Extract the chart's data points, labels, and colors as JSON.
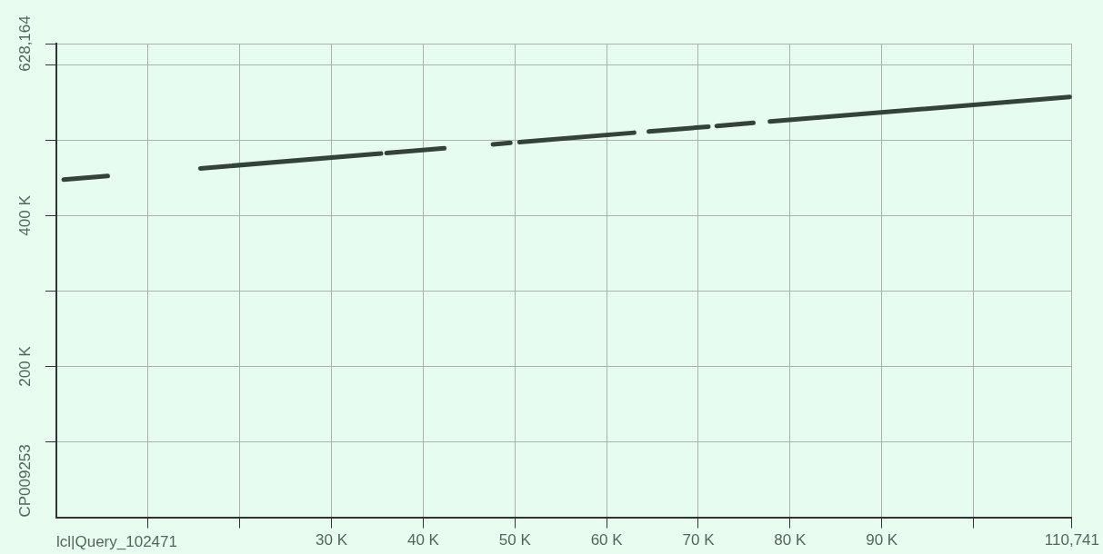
{
  "chart_data": {
    "type": "line",
    "xlabel": "lcl|Query_102471",
    "ylabel": "CP009253",
    "series": [
      {
        "color": "#34423a",
        "x": [
          800,
          5600,
          10000,
          15700,
          35400,
          35700,
          36000,
          42300,
          45000,
          47600,
          49500,
          50000,
          50500,
          63000,
          63800,
          64600,
          71100,
          71500,
          72000,
          76000,
          77000,
          77800,
          110500
        ],
        "values": [
          447800,
          452600,
          null,
          462700,
          482400,
          null,
          483000,
          489300,
          null,
          494600,
          496500,
          null,
          497500,
          510000,
          null,
          511600,
          518100,
          null,
          519000,
          523000,
          null,
          524800,
          557500
        ]
      }
    ],
    "xlim": [
      1,
      110741
    ],
    "ylim": [
      1,
      628164
    ],
    "xticks": [
      {
        "value": 10000,
        "label": null
      },
      {
        "value": 20000,
        "label": null
      },
      {
        "value": 30000,
        "label": "30 K"
      },
      {
        "value": 40000,
        "label": "40 K"
      },
      {
        "value": 50000,
        "label": "50 K"
      },
      {
        "value": 60000,
        "label": "60 K"
      },
      {
        "value": 70000,
        "label": "70 K"
      },
      {
        "value": 80000,
        "label": "80 K"
      },
      {
        "value": 90000,
        "label": "90 K"
      },
      {
        "value": 100000,
        "label": null
      },
      {
        "value": 110741,
        "label": "110,741"
      }
    ],
    "yticks": [
      {
        "value": 100000,
        "label": null
      },
      {
        "value": 200000,
        "label": "200 K"
      },
      {
        "value": 300000,
        "label": null
      },
      {
        "value": 400000,
        "label": "400 K"
      },
      {
        "value": 500000,
        "label": null
      },
      {
        "value": 600000,
        "label": null
      },
      {
        "value": 628164,
        "label": "628,164"
      }
    ],
    "grid": true,
    "marker": "none",
    "line_style": "solid"
  }
}
